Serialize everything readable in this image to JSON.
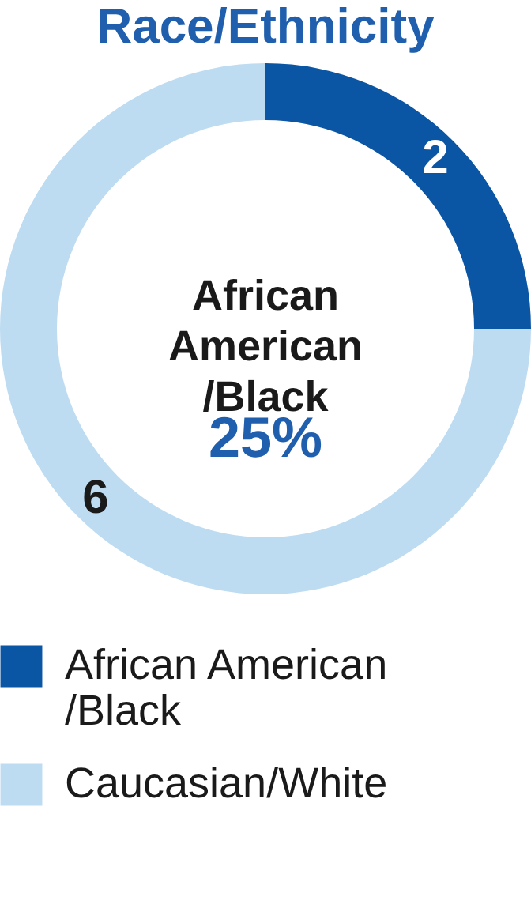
{
  "chart_data": {
    "type": "donut",
    "title": "Race/Ethnicity",
    "categories": [
      "African American /Black",
      "Caucasian/White"
    ],
    "values": [
      2,
      6
    ],
    "colors": [
      "#0b56a4",
      "#bddcf2"
    ],
    "data_labels": true,
    "legend": "bottom",
    "annotations": [
      "African American /Black",
      "25%"
    ]
  }
}
